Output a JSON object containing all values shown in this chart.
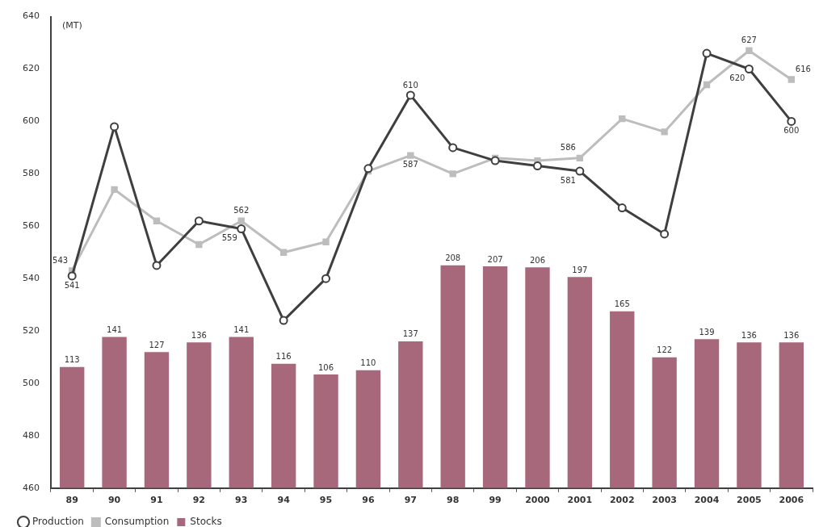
{
  "chart_data": {
    "type": "line",
    "ylabel": "(MT)",
    "categories": [
      "89",
      "90",
      "91",
      "92",
      "93",
      "94",
      "95",
      "96",
      "97",
      "98",
      "99",
      "2000",
      "2001",
      "2002",
      "2003",
      "2004",
      "2005",
      "2006"
    ],
    "series": [
      {
        "name": "Production",
        "color": "#3f3f3f",
        "marker": "circle",
        "values": [
          541,
          598,
          545,
          562,
          559,
          524,
          540,
          582,
          610,
          590,
          585,
          583,
          581,
          567,
          557,
          626,
          620,
          600
        ],
        "value_labels": [
          "541",
          null,
          null,
          null,
          "559",
          null,
          null,
          null,
          "610",
          null,
          null,
          null,
          "581",
          null,
          null,
          null,
          "620",
          "600"
        ]
      },
      {
        "name": "Consumption",
        "color": "#bdbdbd",
        "marker": "square",
        "values": [
          543,
          574,
          562,
          553,
          562,
          550,
          554,
          581,
          587,
          580,
          586,
          585,
          586,
          601,
          596,
          614,
          627,
          616
        ],
        "value_labels": [
          "543",
          null,
          null,
          null,
          "562",
          null,
          null,
          null,
          "587",
          null,
          null,
          null,
          "586",
          null,
          null,
          null,
          "627",
          "616"
        ]
      },
      {
        "name": "Stocks",
        "type": "bar",
        "axis": "y2",
        "color": "#a8687c",
        "values": [
          113,
          141,
          127,
          136,
          141,
          116,
          106,
          110,
          137,
          208,
          207,
          206,
          197,
          165,
          122,
          139,
          136,
          136
        ],
        "value_labels": [
          "113",
          "141",
          "127",
          "136",
          "141",
          "116",
          "106",
          "110",
          "137",
          "208",
          "207",
          "206",
          "197",
          "165",
          "122",
          "139",
          "136",
          "136"
        ]
      }
    ],
    "ylim": [
      460,
      640
    ],
    "yticks": [
      460,
      480,
      500,
      520,
      540,
      560,
      580,
      600,
      620,
      640
    ],
    "y2lim": [
      0,
      440
    ],
    "tick_labels": "xy",
    "legend": "bottom left"
  }
}
